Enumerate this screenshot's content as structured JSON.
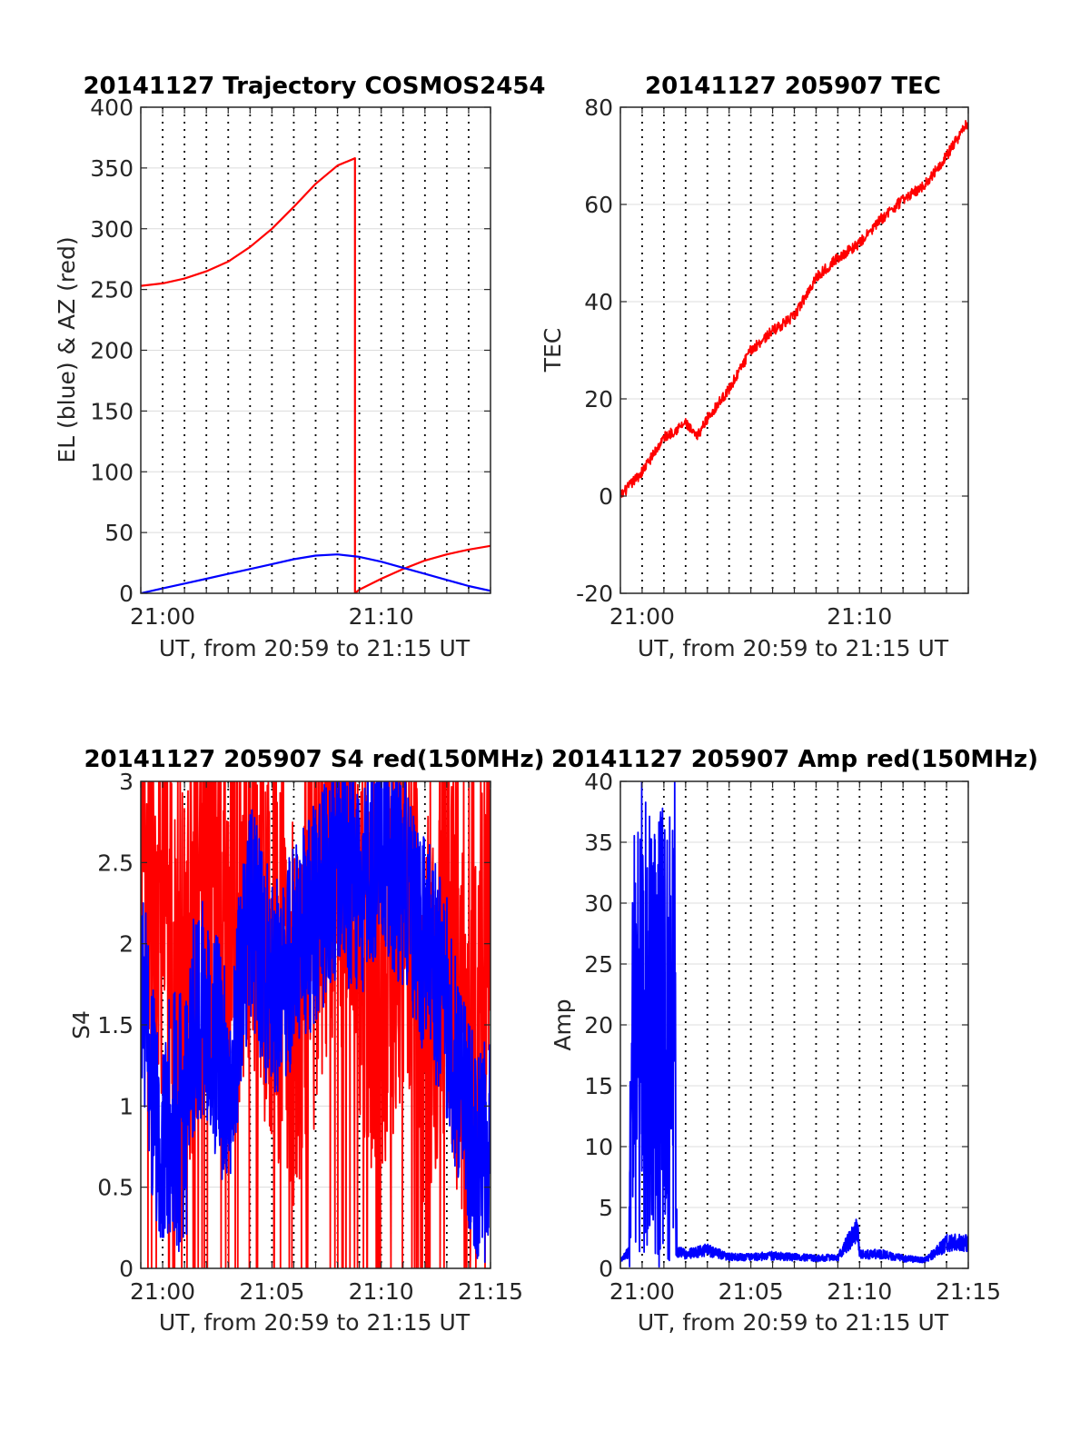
{
  "figure": {
    "background": "#ffffff",
    "gridline_color": "#000000",
    "hgrid_color": "#dcdcdc"
  },
  "chart_data": [
    {
      "id": "trajectory",
      "type": "line",
      "title": "20141127 Trajectory COSMOS2454",
      "xlabel": "UT, from 20:59 to 21:15 UT",
      "ylabel": "EL (blue) & AZ (red)",
      "xlim_min": [
        -1,
        15
      ],
      "ylim": [
        0,
        400
      ],
      "yticks": [
        0,
        50,
        100,
        150,
        200,
        250,
        300,
        350,
        400
      ],
      "xticks_min": [
        0,
        10
      ],
      "xtick_labels": [
        "21:00",
        "21:10"
      ],
      "vgrid_dotted_every_min": 1,
      "grid": true,
      "series": [
        {
          "color": "#ff0000",
          "x_min": [
            -1,
            0,
            1,
            2,
            3,
            4,
            5,
            6,
            7,
            8,
            8.8,
            8.801,
            9.0,
            10,
            11,
            12,
            13,
            14,
            15
          ],
          "y": [
            253,
            255,
            259,
            265,
            273,
            285,
            300,
            318,
            337,
            352,
            358,
            0,
            3,
            12,
            20,
            27,
            32,
            36,
            39
          ]
        },
        {
          "color": "#0000ff",
          "x_min": [
            -1,
            0,
            1,
            2,
            3,
            4,
            5,
            6,
            7,
            8,
            9,
            10,
            11,
            12,
            13,
            14,
            15
          ],
          "y": [
            0,
            4,
            8,
            12,
            16,
            20,
            24,
            28,
            31,
            32,
            30,
            26,
            21,
            16,
            11,
            6,
            2
          ]
        }
      ]
    },
    {
      "id": "tec",
      "type": "line",
      "title": "20141127 205907 TEC",
      "xlabel": "UT, from 20:59 to 21:15 UT",
      "ylabel": "TEC",
      "xlim_min": [
        -1,
        15
      ],
      "ylim": [
        -20,
        80
      ],
      "yticks": [
        -20,
        0,
        20,
        40,
        60,
        80
      ],
      "xticks_min": [
        0,
        10
      ],
      "xtick_labels": [
        "21:00",
        "21:10"
      ],
      "vgrid_dotted_every_min": 1,
      "grid": true,
      "series": [
        {
          "color": "#ff0000",
          "x_min": [
            -1,
            0,
            1,
            2,
            2.5,
            3,
            4,
            5,
            6,
            7,
            8,
            9,
            10,
            11,
            12,
            13,
            14,
            15
          ],
          "y": [
            0,
            5,
            12,
            15,
            12,
            16,
            22,
            30,
            34,
            37,
            45,
            49,
            52,
            57,
            61,
            64,
            70,
            77
          ]
        }
      ]
    },
    {
      "id": "s4",
      "type": "line",
      "title": "20141127 205907 S4 red(150MHz)",
      "xlabel": "UT, from 20:59 to 21:15 UT",
      "ylabel": "S4",
      "xlim_min": [
        -1,
        15
      ],
      "ylim": [
        0,
        3
      ],
      "yticks": [
        0,
        0.5,
        1,
        1.5,
        2,
        2.5,
        3
      ],
      "ytick_labels": [
        "0",
        "0.5",
        "1",
        "1.5",
        "2",
        "2.5",
        "3"
      ],
      "xticks_min": [
        0,
        5,
        10,
        15
      ],
      "xtick_labels": [
        "21:00",
        "21:05",
        "21:10",
        "21:15"
      ],
      "vgrid_dotted_every_min": 1,
      "grid": true,
      "series": [
        {
          "color": "#ff0000",
          "x_min": [
            -1,
            0,
            1,
            2,
            3,
            4,
            5,
            6,
            7,
            8,
            9,
            10,
            11,
            12,
            13,
            14,
            15
          ],
          "y": [
            2.6,
            2.2,
            1.8,
            2.4,
            2.0,
            2.6,
            2.0,
            1.6,
            2.2,
            2.8,
            2.0,
            1.8,
            2.4,
            1.5,
            2.2,
            1.0,
            2.5
          ]
        },
        {
          "color": "#0000ff",
          "x_min": [
            -1,
            0,
            1,
            2,
            3,
            4,
            5,
            6,
            7,
            8,
            9,
            10,
            11,
            12,
            13,
            14,
            15
          ],
          "y": [
            1.8,
            0.5,
            1.4,
            1.6,
            1.1,
            2.2,
            1.7,
            1.9,
            2.2,
            2.5,
            2.3,
            2.7,
            2.4,
            2.0,
            1.6,
            0.8,
            0.7
          ]
        }
      ]
    },
    {
      "id": "amp",
      "type": "line",
      "title": "20141127 205907 Amp red(150MHz)",
      "xlabel": "UT, from 20:59 to 21:15 UT",
      "ylabel": "Amp",
      "xlim_min": [
        -1,
        15
      ],
      "ylim": [
        0,
        40
      ],
      "yticks": [
        0,
        5,
        10,
        15,
        20,
        25,
        30,
        35,
        40
      ],
      "xticks_min": [
        0,
        5,
        10,
        15
      ],
      "xtick_labels": [
        "21:00",
        "21:05",
        "21:10",
        "21:15"
      ],
      "vgrid_dotted_every_min": 1,
      "grid": true,
      "series": [
        {
          "color": "#0000ff",
          "x_min": [
            -1,
            -0.6,
            -0.5,
            0,
            0.5,
            1,
            1.5,
            1.6,
            2,
            3,
            4,
            5,
            6,
            7,
            8,
            9,
            9.9,
            10,
            11,
            12,
            13,
            13.8,
            14,
            15
          ],
          "y": [
            0.5,
            1.2,
            30,
            36,
            35,
            34,
            36,
            1.2,
            1.0,
            1.3,
            0.8,
            0.8,
            0.9,
            0.8,
            0.7,
            0.8,
            2.8,
            1.0,
            1.0,
            0.7,
            0.6,
            1.5,
            1.8,
            1.8
          ]
        }
      ]
    }
  ]
}
